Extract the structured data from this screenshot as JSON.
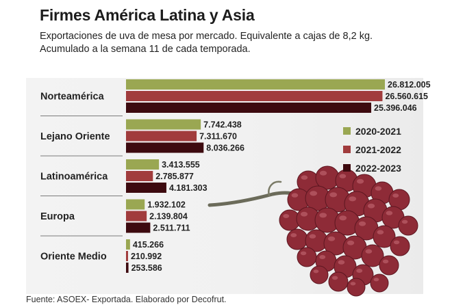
{
  "title": "Firmes América Latina y Asia",
  "subtitle": "Exportaciones de uva de mesa por mercado. Equivalente a cajas de 8,2 kg. Acumulado a la semana 11 de cada temporada.",
  "source": "Fuente: ASOEX- Exportada. Elaborado por Decofrut.",
  "colors": {
    "series_2020_2021": "#9aa752",
    "series_2021_2022": "#a13c3d",
    "series_2022_2023": "#3d0a0f",
    "grape": "#8e2b37",
    "separator": "#7a7a7a"
  },
  "chart_data": {
    "type": "bar",
    "orientation": "horizontal",
    "categories": [
      "Norteamérica",
      "Lejano Oriente",
      "Latinoamérica",
      "Europa",
      "Oriente Medio"
    ],
    "series": [
      {
        "name": "2020-2021",
        "values": [
          26812005,
          7742438,
          3413555,
          1932102,
          415266
        ],
        "labels": [
          "26.812.005",
          "7.742.438",
          "3.413.555",
          "1.932.102",
          "415.266"
        ]
      },
      {
        "name": "2021-2022",
        "values": [
          26560615,
          7311670,
          2785877,
          2139804,
          210992
        ],
        "labels": [
          "26.560.615",
          "7.311.670",
          "2.785.877",
          "2.139.804",
          "210.992"
        ]
      },
      {
        "name": "2022-2023",
        "values": [
          25396046,
          8036266,
          4181303,
          2511711,
          253586
        ],
        "labels": [
          "25.396.046",
          "8.036.266",
          "4.181.303",
          "2.511.711",
          "253.586"
        ]
      }
    ],
    "xlim": [
      0,
      26812005
    ],
    "legend_position": "right",
    "grid": false
  }
}
